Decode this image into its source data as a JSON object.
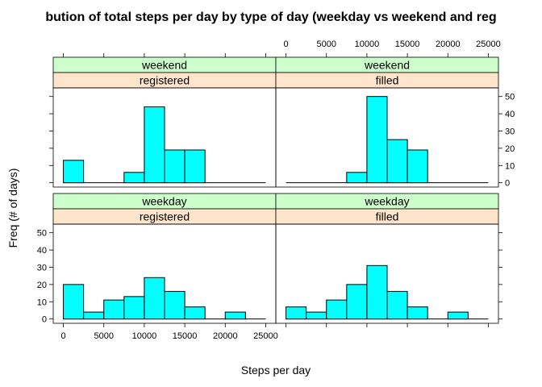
{
  "chart_data": {
    "type": "bar",
    "title": "bution of total steps per day by type of day (weekday vs weekend and reg",
    "xlabel": "Steps per day",
    "ylabel": "Freq (# of days)",
    "x_ticks": [
      "0",
      "5000",
      "10000",
      "15000",
      "20000",
      "25000"
    ],
    "y_ticks": [
      "0",
      "10",
      "20",
      "30",
      "40",
      "50"
    ],
    "bin_edges": [
      0,
      2500,
      5000,
      7500,
      10000,
      12500,
      15000,
      17500,
      20000,
      22500,
      25000
    ],
    "xlim": [
      -1250,
      26250
    ],
    "ylim": [
      -2.5,
      55
    ],
    "colors": {
      "bar": "#00FFFF",
      "strip_top": "#CCFFCC",
      "strip_bottom": "#FFE5CC"
    },
    "panels": [
      {
        "name": "weekend-registered",
        "strip_top": "weekend",
        "strip_bottom": "registered",
        "values": [
          13,
          0,
          0,
          6,
          44,
          19,
          19,
          0,
          0,
          0
        ]
      },
      {
        "name": "weekend-filled",
        "strip_top": "weekend",
        "strip_bottom": "filled",
        "values": [
          0,
          0,
          0,
          6,
          50,
          25,
          19,
          0,
          0,
          0
        ]
      },
      {
        "name": "weekday-registered",
        "strip_top": "weekday",
        "strip_bottom": "registered",
        "values": [
          20,
          4,
          11,
          13,
          24,
          16,
          7,
          0,
          4,
          0
        ]
      },
      {
        "name": "weekday-filled",
        "strip_top": "weekday",
        "strip_bottom": "filled",
        "values": [
          7,
          4,
          11,
          20,
          31,
          16,
          7,
          0,
          4,
          0
        ]
      }
    ]
  }
}
